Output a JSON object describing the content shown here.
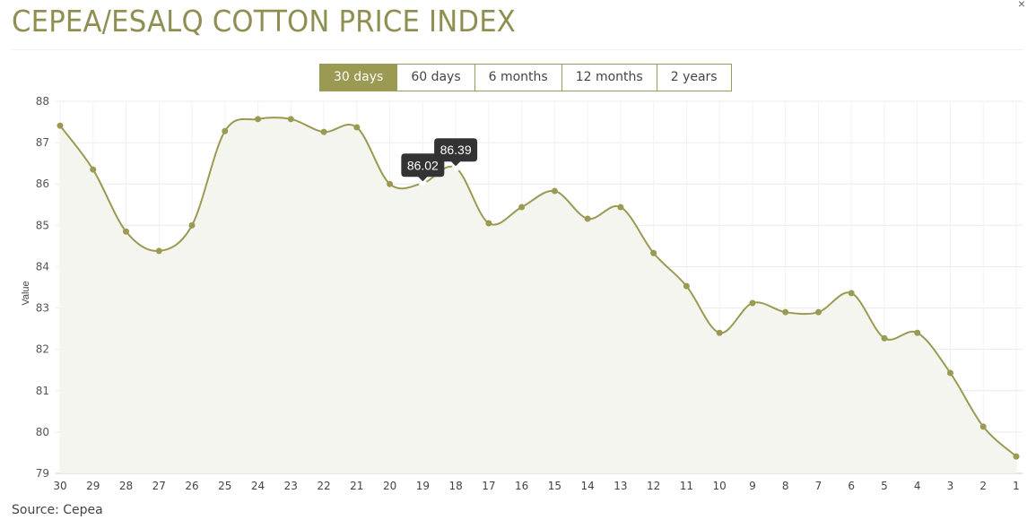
{
  "header": {
    "title": "CEPEA/ESALQ COTTON PRICE INDEX",
    "close_label": "×"
  },
  "range_buttons": [
    {
      "label": "30 days",
      "active": true
    },
    {
      "label": "60 days"
    },
    {
      "label": "6 months"
    },
    {
      "label": "12 months"
    },
    {
      "label": "2 years"
    }
  ],
  "footer": {
    "source": "Source: Cepea"
  },
  "colors": {
    "accent": "#9a9a52",
    "fill": "#f5f5f0",
    "tooltip_bg": "#333333"
  },
  "chart_data": {
    "type": "line",
    "title": "",
    "xlabel": "",
    "ylabel": "Value",
    "ylim": [
      79,
      88
    ],
    "yticks": [
      79,
      80,
      81,
      82,
      83,
      84,
      85,
      86,
      87,
      88
    ],
    "grid": true,
    "categories": [
      "30",
      "29",
      "28",
      "27",
      "26",
      "25",
      "24",
      "23",
      "22",
      "21",
      "20",
      "19",
      "18",
      "17",
      "16",
      "15",
      "14",
      "13",
      "12",
      "11",
      "10",
      "9",
      "8",
      "7",
      "6",
      "5",
      "4",
      "3",
      "2",
      "1"
    ],
    "values": [
      87.41,
      86.35,
      84.85,
      84.38,
      85.0,
      87.28,
      87.57,
      87.57,
      87.26,
      87.37,
      86.0,
      86.02,
      86.39,
      85.05,
      85.44,
      85.83,
      85.16,
      85.44,
      84.33,
      83.53,
      82.4,
      83.12,
      82.9,
      82.9,
      83.36,
      82.27,
      82.4,
      81.43,
      80.13,
      79.41
    ],
    "tooltips": [
      {
        "category": "19",
        "label": "86.02"
      },
      {
        "category": "18",
        "label": "86.39"
      }
    ]
  }
}
